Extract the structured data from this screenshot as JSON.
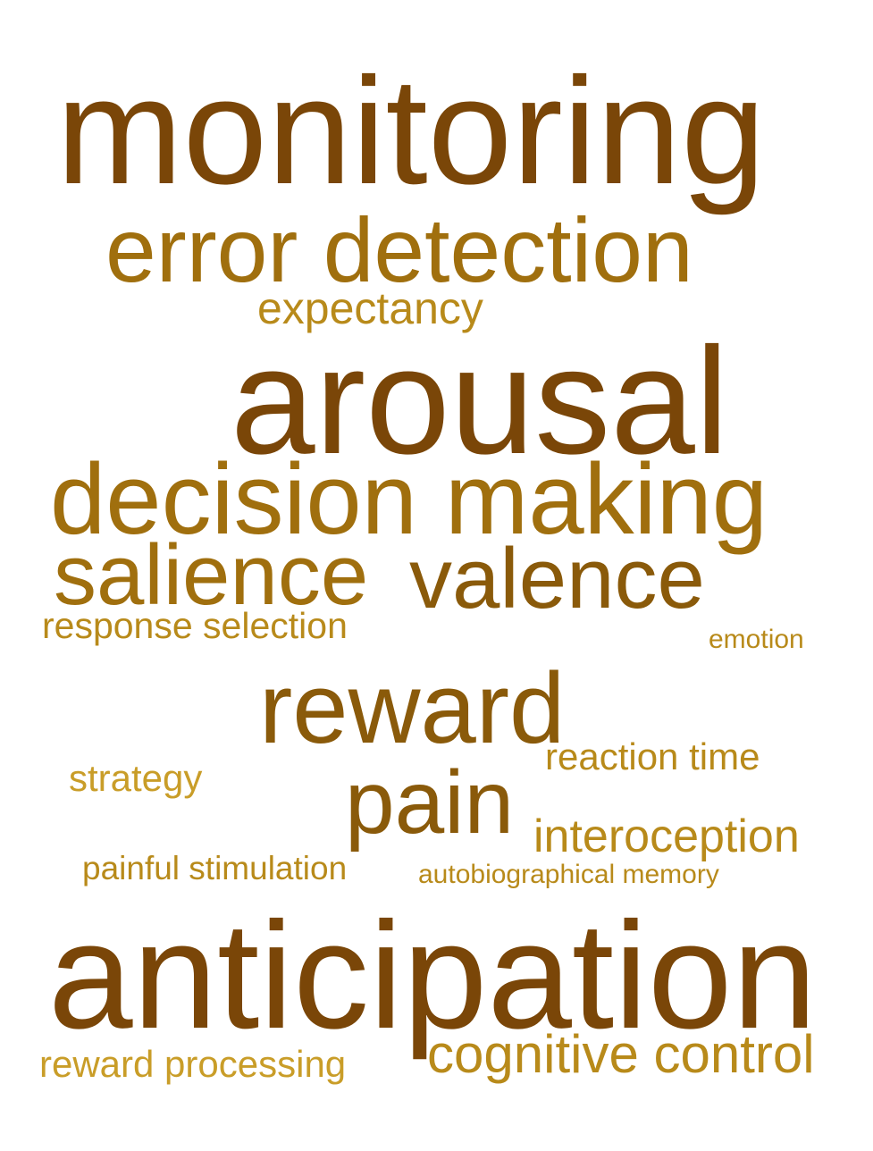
{
  "words": {
    "monitoring": "monitoring",
    "error_detection": "error detection",
    "expectancy": "expectancy",
    "arousal": "arousal",
    "decision_making": "decision making",
    "salience": "salience",
    "valence": "valence",
    "response_selection": "response selection",
    "emotion": "emotion",
    "reward": "reward",
    "reaction_time": "reaction time",
    "strategy": "strategy",
    "pain": "pain",
    "interoception": "interoception",
    "painful_stimulation": "painful stimulation",
    "autobiographical_memory": "autobiographical memory",
    "anticipation": "anticipation",
    "reward_processing": "reward processing",
    "cognitive_control": "cognitive control"
  },
  "colors": {
    "dark_brown": "#7a4608",
    "medium_brown": "#8a5a0a",
    "golden_brown": "#a06f0e",
    "gold": "#b88a1a",
    "light_gold": "#c99d28",
    "background": "#ffffff"
  }
}
